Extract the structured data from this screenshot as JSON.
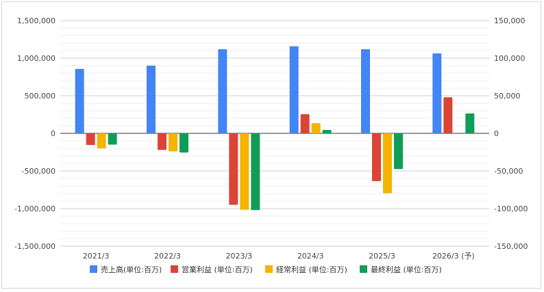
{
  "chart_data": {
    "type": "bar",
    "categories": [
      "2021/3",
      "2022/3",
      "2023/3",
      "2024/3",
      "2025/3",
      "2026/3 (予)"
    ],
    "series": [
      {
        "name": "売上高(単位:百万)",
        "color": "#4285F4",
        "axis": "left",
        "values": [
          857000,
          900000,
          1118000,
          1158000,
          1118000,
          1063000
        ]
      },
      {
        "name": "営業利益 (単位:百万)",
        "color": "#DB4437",
        "axis": "right",
        "values": [
          -15500,
          -22000,
          -95000,
          25500,
          -63500,
          48000
        ]
      },
      {
        "name": "経常利益 (単位:百万)",
        "color": "#F4B400",
        "axis": "right",
        "values": [
          -20000,
          -24000,
          -101500,
          13500,
          -79500,
          null
        ]
      },
      {
        "name": "最終利益 (単位:百万)",
        "color": "#0F9D58",
        "axis": "right",
        "values": [
          -15000,
          -25500,
          -102000,
          4500,
          -47500,
          26500
        ]
      }
    ],
    "y_left": {
      "range": [
        -1500000,
        1500000
      ],
      "tick_labels": [
        "1,500,000",
        "1,000,000",
        "500,000",
        "0",
        "-500,000",
        "-1,000,000",
        "-1,500,000"
      ],
      "tick_values": [
        1500000,
        1000000,
        500000,
        0,
        -500000,
        -1000000,
        -1500000
      ]
    },
    "y_right": {
      "range": [
        -150000,
        150000
      ],
      "tick_labels": [
        "150,000",
        "100,000",
        "50,000",
        "0",
        "-50,000",
        "-100,000",
        "-150,000"
      ],
      "tick_values": [
        150000,
        100000,
        50000,
        0,
        -50000,
        -100000,
        -150000
      ]
    },
    "grid": true,
    "legend_position": "bottom"
  }
}
